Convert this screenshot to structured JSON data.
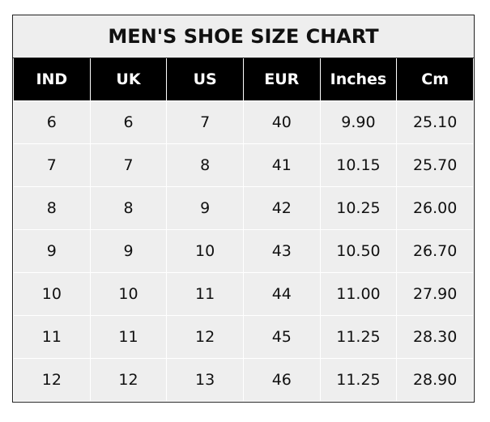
{
  "chart_data": {
    "type": "table",
    "title": "MEN'S SHOE SIZE CHART",
    "columns": [
      "IND",
      "UK",
      "US",
      "EUR",
      "Inches",
      "Cm"
    ],
    "rows": [
      [
        "6",
        "6",
        "7",
        "40",
        "9.90",
        "25.10"
      ],
      [
        "7",
        "7",
        "8",
        "41",
        "10.15",
        "25.70"
      ],
      [
        "8",
        "8",
        "9",
        "42",
        "10.25",
        "26.00"
      ],
      [
        "9",
        "9",
        "10",
        "43",
        "10.50",
        "26.70"
      ],
      [
        "10",
        "10",
        "11",
        "44",
        "11.00",
        "27.90"
      ],
      [
        "11",
        "11",
        "12",
        "45",
        "11.25",
        "28.30"
      ],
      [
        "12",
        "12",
        "13",
        "46",
        "11.25",
        "28.90"
      ]
    ],
    "colors": {
      "header_bg": "#000000",
      "header_text": "#ffffff",
      "cell_bg": "#eeeeee"
    }
  }
}
